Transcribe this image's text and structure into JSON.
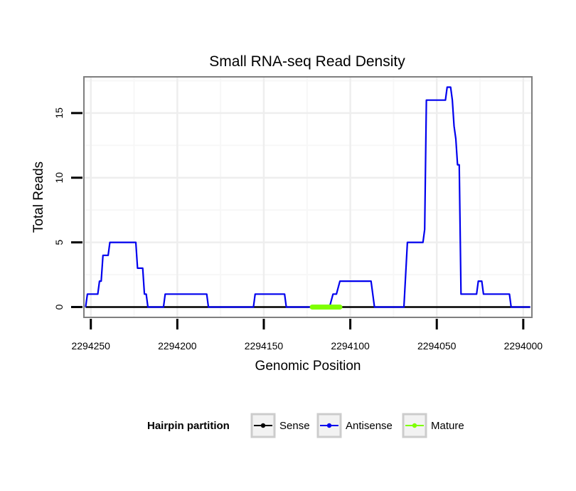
{
  "chart_data": {
    "type": "line",
    "title": "Small RNA-seq Read Density",
    "xlabel": "Genomic Position",
    "ylabel": "Total Reads",
    "xlim": [
      2294254,
      2293995
    ],
    "x_reversed": true,
    "ylim": [
      -0.8,
      17.8
    ],
    "x_ticks": [
      2294250,
      2294200,
      2294150,
      2294100,
      2294050,
      2294000
    ],
    "x_tick_labels": [
      "2294250",
      "2294200",
      "2294150",
      "2294100",
      "2294050",
      "2294000"
    ],
    "y_ticks": [
      0,
      5,
      10,
      15
    ],
    "y_tick_labels": [
      "0",
      "5",
      "10",
      "15"
    ],
    "grid": true,
    "legend": {
      "title": "Hairpin partition",
      "position": "bottom",
      "entries": [
        "Sense",
        "Antisense",
        "Mature"
      ]
    },
    "series": [
      {
        "name": "Sense",
        "color": "#000000",
        "points": [
          [
            2294253,
            0
          ],
          [
            2293996,
            0
          ]
        ]
      },
      {
        "name": "Antisense",
        "color": "#0000ee",
        "points": [
          [
            2294253,
            0
          ],
          [
            2294252,
            1
          ],
          [
            2294246,
            1
          ],
          [
            2294245,
            2
          ],
          [
            2294244,
            2
          ],
          [
            2294243,
            4
          ],
          [
            2294240,
            4
          ],
          [
            2294239,
            5
          ],
          [
            2294224,
            5
          ],
          [
            2294223,
            3
          ],
          [
            2294220,
            3
          ],
          [
            2294219,
            1
          ],
          [
            2294218,
            1
          ],
          [
            2294217,
            0
          ],
          [
            2294208,
            0
          ],
          [
            2294207,
            1
          ],
          [
            2294183,
            1
          ],
          [
            2294182,
            0
          ],
          [
            2294156,
            0
          ],
          [
            2294155,
            1
          ],
          [
            2294138,
            1
          ],
          [
            2294137,
            0
          ],
          [
            2294112,
            0
          ],
          [
            2294110,
            1
          ],
          [
            2294108,
            1
          ],
          [
            2294106,
            2
          ],
          [
            2294088,
            2
          ],
          [
            2294086,
            0
          ],
          [
            2294069,
            0
          ],
          [
            2294067,
            5
          ],
          [
            2294058,
            5
          ],
          [
            2294057,
            6
          ],
          [
            2294056,
            16
          ],
          [
            2294045,
            16
          ],
          [
            2294044,
            17
          ],
          [
            2294042,
            17
          ],
          [
            2294041,
            16
          ],
          [
            2294040,
            14
          ],
          [
            2294039,
            13
          ],
          [
            2294038,
            11
          ],
          [
            2294037,
            11
          ],
          [
            2294036,
            1
          ],
          [
            2294027,
            1
          ],
          [
            2294026,
            2
          ],
          [
            2294024,
            2
          ],
          [
            2294023,
            1
          ],
          [
            2294008,
            1
          ],
          [
            2294007,
            0
          ],
          [
            2293996,
            0
          ]
        ]
      },
      {
        "name": "Mature",
        "color": "#7fff00",
        "points": [
          [
            2294122,
            0
          ],
          [
            2294106,
            0
          ]
        ]
      }
    ]
  }
}
